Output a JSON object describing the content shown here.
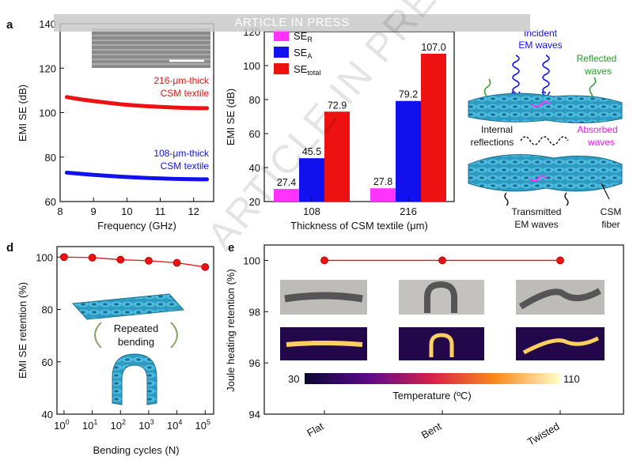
{
  "banner": "ARTICLE IN PRESS",
  "watermark": "ARTICLE IN PRESS",
  "panels": {
    "a": {
      "letter": "a",
      "label_216": [
        "216-μm-thick",
        "CSM textile"
      ],
      "label_108": [
        "108-μm-thick",
        "CSM textile"
      ]
    },
    "b": {
      "legend": [
        {
          "base": "SE",
          "sub": "R",
          "color": "#ff33ff"
        },
        {
          "base": "SE",
          "sub": "A",
          "color": "#1111ee"
        },
        {
          "base": "SE",
          "sub": "total",
          "color": "#ee1111"
        }
      ]
    },
    "c": {
      "incident": [
        "Incident",
        "EM waves"
      ],
      "reflected": [
        "Reflected",
        "waves"
      ],
      "internal": [
        "Internal",
        "reflections"
      ],
      "absorbed": [
        "Absorbed",
        "waves"
      ],
      "transmitted": [
        "Transmitted",
        "EM waves"
      ],
      "fiber": [
        "CSM",
        "fiber"
      ]
    },
    "d": {
      "letter": "d",
      "repeated": [
        "Repeated",
        "bending"
      ]
    },
    "e": {
      "letter": "e",
      "colorbar_min": "30",
      "colorbar_max": "110",
      "colorbar_label": "Temperature (ºC)"
    }
  },
  "chart_data": [
    {
      "id": "a",
      "type": "line",
      "xlabel": "Frequency (GHz)",
      "ylabel": "EMI SE (dB)",
      "xlim": [
        8,
        12.6
      ],
      "ylim": [
        60,
        140
      ],
      "xticks": [
        8,
        9,
        10,
        11,
        12
      ],
      "yticks": [
        60,
        80,
        100,
        120,
        140
      ],
      "series": [
        {
          "name": "216-μm-thick CSM textile",
          "color": "#ee1111",
          "x": [
            8.2,
            8.6,
            9.0,
            9.4,
            9.8,
            10.2,
            10.6,
            11.0,
            11.4,
            11.8,
            12.2,
            12.4
          ],
          "y": [
            107,
            106,
            105.2,
            104.5,
            103.8,
            103.3,
            102.9,
            102.6,
            102.3,
            102.1,
            102.0,
            102.0
          ]
        },
        {
          "name": "108-μm-thick CSM textile",
          "color": "#1111ee",
          "x": [
            8.2,
            8.6,
            9.0,
            9.4,
            9.8,
            10.2,
            10.6,
            11.0,
            11.4,
            11.8,
            12.2,
            12.4
          ],
          "y": [
            73,
            72.5,
            72.0,
            71.6,
            71.2,
            70.9,
            70.6,
            70.4,
            70.2,
            70.1,
            70.0,
            70.0
          ]
        }
      ]
    },
    {
      "id": "b",
      "type": "bar",
      "xlabel": "Thickness of CSM textile (μm)",
      "ylabel": "EMI SE (dB)",
      "ylim": [
        20,
        120
      ],
      "yticks": [
        20,
        40,
        60,
        80,
        100,
        120
      ],
      "categories": [
        "108",
        "216"
      ],
      "series": [
        {
          "name": "SE_R",
          "color": "#ff33ff",
          "values": [
            27.4,
            27.8
          ],
          "labels": [
            "27.4",
            "27.8"
          ]
        },
        {
          "name": "SE_A",
          "color": "#1111ee",
          "values": [
            45.5,
            79.2
          ],
          "labels": [
            "45.5",
            "79.2"
          ]
        },
        {
          "name": "SE_total",
          "color": "#ee1111",
          "values": [
            72.9,
            107.0
          ],
          "labels": [
            "72.9",
            "107.0"
          ]
        }
      ]
    },
    {
      "id": "d",
      "type": "line",
      "xlabel": "Bending cycles (N)",
      "ylabel": "EMI SE retention (%)",
      "xscale": "log",
      "xlim": [
        0,
        5
      ],
      "xtick_labels": [
        {
          "base": "10",
          "exp": "0"
        },
        {
          "base": "10",
          "exp": "1"
        },
        {
          "base": "10",
          "exp": "2"
        },
        {
          "base": "10",
          "exp": "3"
        },
        {
          "base": "10",
          "exp": "4"
        },
        {
          "base": "10",
          "exp": "5"
        }
      ],
      "ylim": [
        40,
        104
      ],
      "yticks": [
        40,
        60,
        80,
        100
      ],
      "series": [
        {
          "name": "retention",
          "color": "#ee1111",
          "x": [
            0,
            1,
            2,
            3,
            4,
            5
          ],
          "y": [
            100,
            99.8,
            99.0,
            98.6,
            97.8,
            96.2
          ]
        }
      ]
    },
    {
      "id": "e",
      "type": "line",
      "xlabel": "",
      "ylabel": "Joule heating retention (%)",
      "categories": [
        "Flat",
        "Bent",
        "Twisted"
      ],
      "ylim": [
        94,
        100.6
      ],
      "yticks": [
        94,
        96,
        98,
        100
      ],
      "series": [
        {
          "name": "retention",
          "color": "#ee1111",
          "values": [
            100,
            100,
            100
          ]
        }
      ]
    }
  ]
}
